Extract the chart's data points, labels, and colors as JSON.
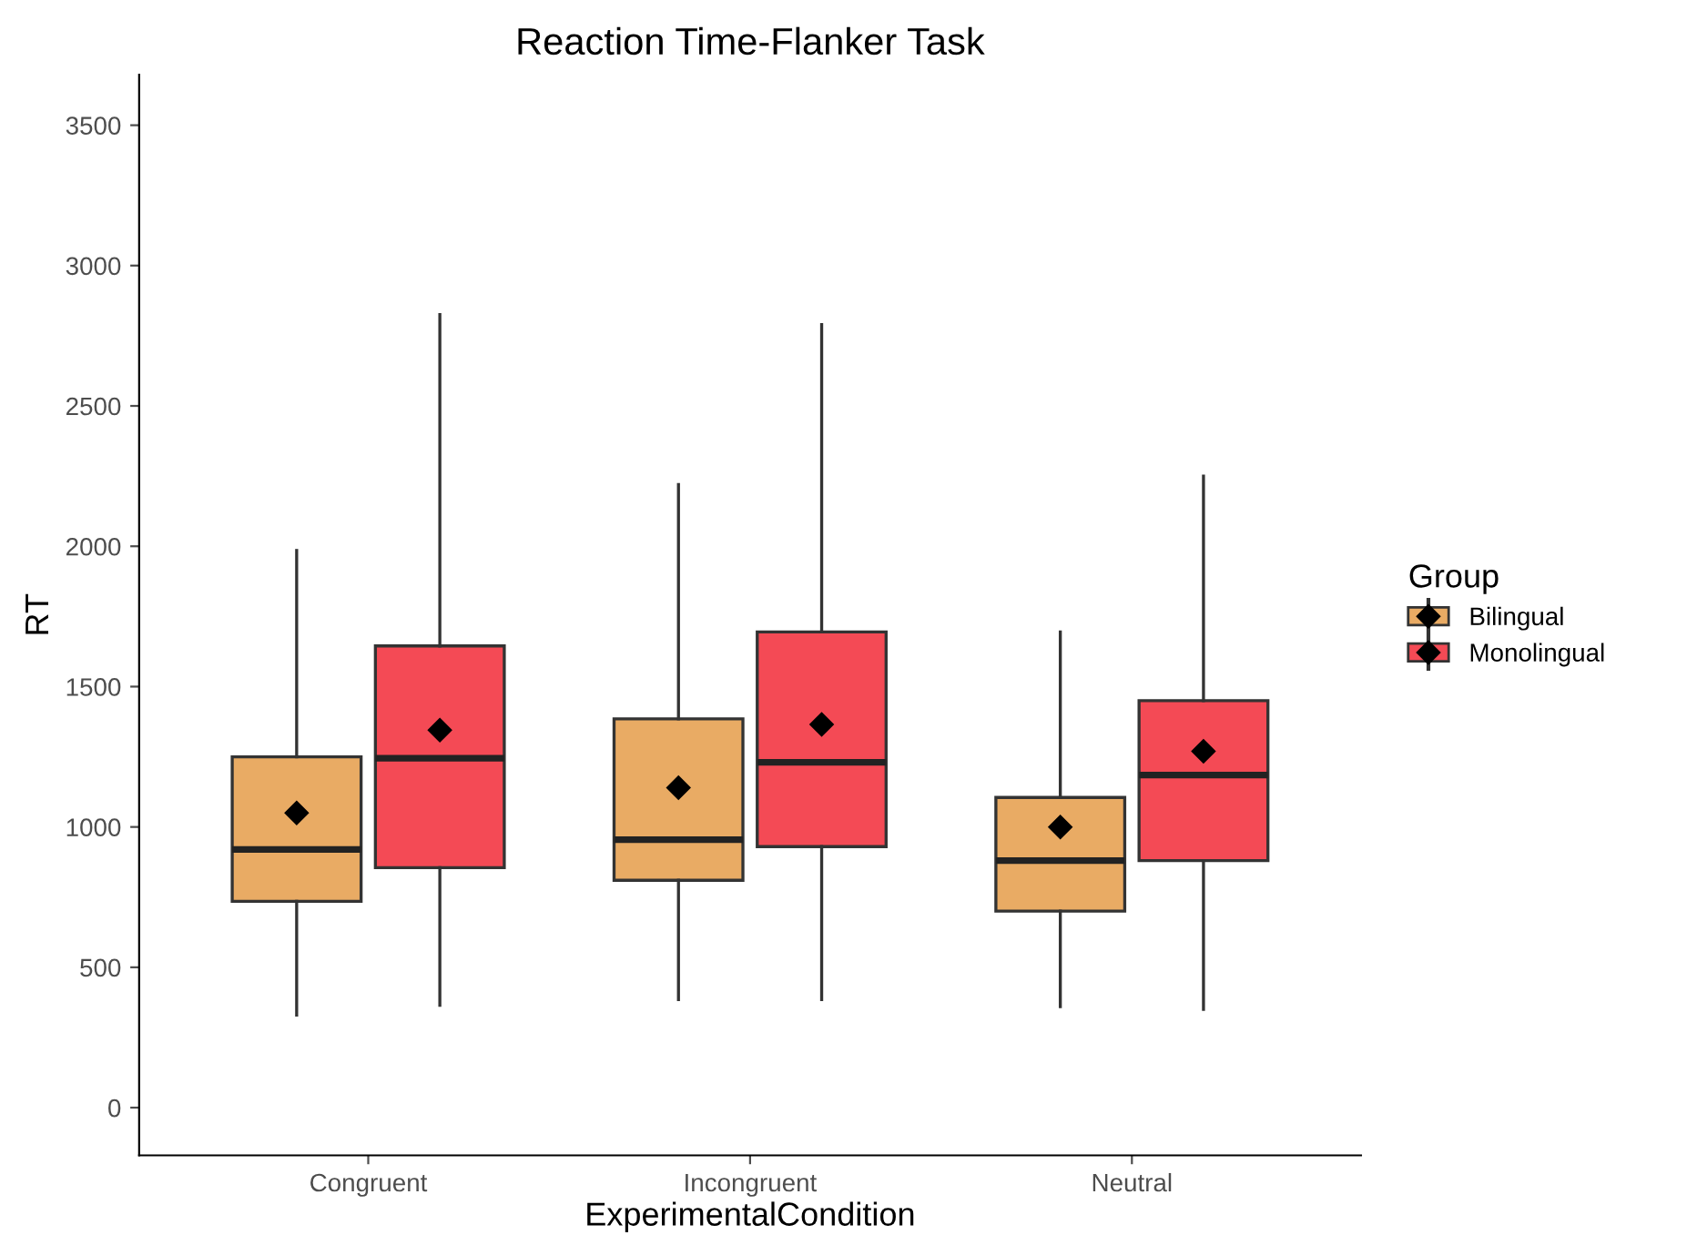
{
  "chart_data": {
    "type": "box",
    "title": "Reaction Time-Flanker Task",
    "xlabel": "ExperimentalCondition",
    "ylabel": "RT",
    "categories": [
      "Congruent",
      "Incongruent",
      "Neutral"
    ],
    "series": [
      {
        "name": "Bilingual",
        "color": "#e9ab64",
        "boxes": [
          {
            "low": 330,
            "q1": 735,
            "median": 920,
            "q3": 1250,
            "high": 1985,
            "mean": 1050
          },
          {
            "low": 385,
            "q1": 810,
            "median": 955,
            "q3": 1385,
            "high": 2220,
            "mean": 1140
          },
          {
            "low": 360,
            "q1": 700,
            "median": 880,
            "q3": 1105,
            "high": 1695,
            "mean": 1000
          }
        ]
      },
      {
        "name": "Monolingual",
        "color": "#f44a55",
        "boxes": [
          {
            "low": 365,
            "q1": 855,
            "median": 1245,
            "q3": 1645,
            "high": 2825,
            "mean": 1345
          },
          {
            "low": 385,
            "q1": 930,
            "median": 1230,
            "q3": 1695,
            "high": 2790,
            "mean": 1365
          },
          {
            "low": 350,
            "q1": 880,
            "median": 1185,
            "q3": 1450,
            "high": 2250,
            "mean": 1270
          }
        ]
      }
    ],
    "legend_title": "Group",
    "legend": "right",
    "ylim": [
      -170,
      3680
    ],
    "yticks": [
      0,
      500,
      1000,
      1500,
      2000,
      2500,
      3000,
      3500
    ],
    "grid": false,
    "marker": "diamond"
  }
}
